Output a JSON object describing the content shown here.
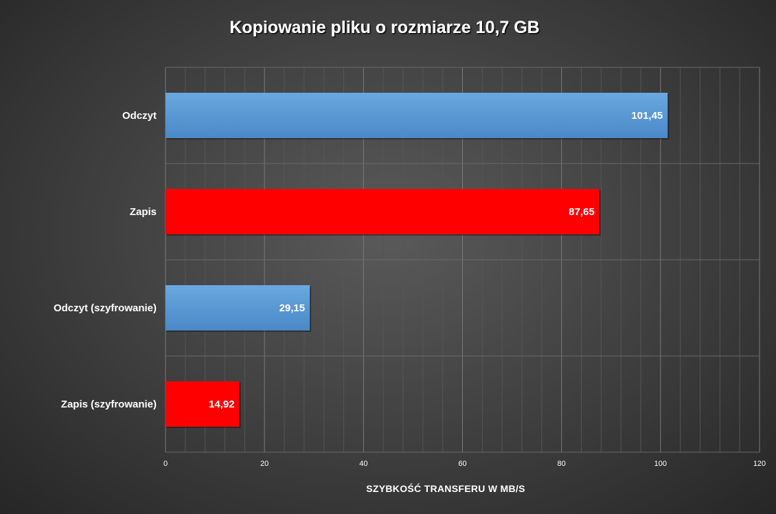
{
  "chart_data": {
    "type": "bar",
    "orientation": "horizontal",
    "title": "Kopiowanie pliku o rozmiarze 10,7 GB",
    "xlabel": "SZYBKOŚĆ TRANSFERU W MB/S",
    "ylabel": "",
    "xlim": [
      0,
      120
    ],
    "x_ticks": [
      "0",
      "20",
      "40",
      "60",
      "80",
      "100",
      "120"
    ],
    "grid": true,
    "categories": [
      "Odczyt",
      "Zapis",
      "Odczyt (szyfrowanie)",
      "Zapis (szyfrowanie)"
    ],
    "values": [
      101.45,
      87.65,
      29.15,
      14.92
    ],
    "value_labels": [
      "101,45",
      "87,65",
      "29,15",
      "14,92"
    ],
    "colors": [
      "#5b9bd5",
      "#ff0000",
      "#5b9bd5",
      "#ff0000"
    ]
  }
}
